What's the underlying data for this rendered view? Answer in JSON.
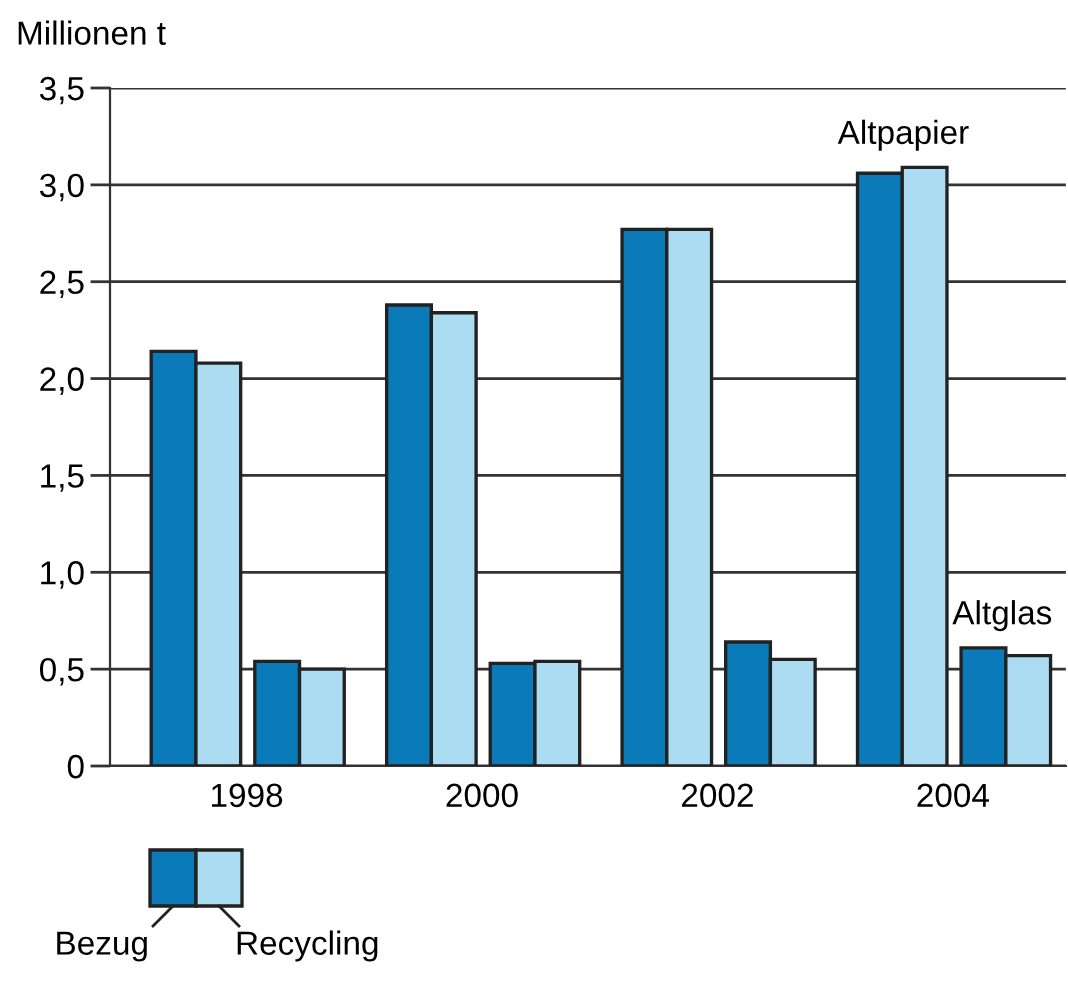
{
  "chart_data": {
    "type": "bar",
    "ylabel": "Millionen t",
    "categories": [
      "1998",
      "2000",
      "2002",
      "2004"
    ],
    "series": [
      {
        "name": "Bezug",
        "color": "#0a7bb8",
        "values": [
          2.14,
          2.38,
          2.77,
          3.06
        ]
      },
      {
        "name": "Recycling",
        "color": "#acdcf2",
        "values": [
          2.08,
          2.34,
          2.77,
          3.09
        ]
      },
      {
        "color": "#0a7bb8",
        "values": [
          0.54,
          0.53,
          0.64,
          0.61
        ]
      },
      {
        "color": "#acdcf2",
        "values": [
          0.5,
          0.54,
          0.55,
          0.57
        ]
      }
    ],
    "annotations": [
      {
        "text": "Altpapier",
        "x": "2004",
        "y": 3.09
      },
      {
        "text": "Altglas",
        "x": "2004",
        "y": 0.61
      }
    ],
    "ylim": [
      0,
      3.5
    ],
    "yticks": [
      0,
      {
        "value": 0.5,
        "label": "0,5"
      },
      {
        "value": 1.0,
        "label": "1,0"
      },
      {
        "value": 1.5,
        "label": "1,5"
      },
      {
        "value": 2.0,
        "label": "2,0"
      },
      {
        "value": 2.5,
        "label": "2,5"
      },
      {
        "value": 3.0,
        "label": "3,0"
      },
      {
        "value": 3.5,
        "label": "3,5"
      }
    ],
    "grid": "y",
    "legend": "bottom left"
  }
}
